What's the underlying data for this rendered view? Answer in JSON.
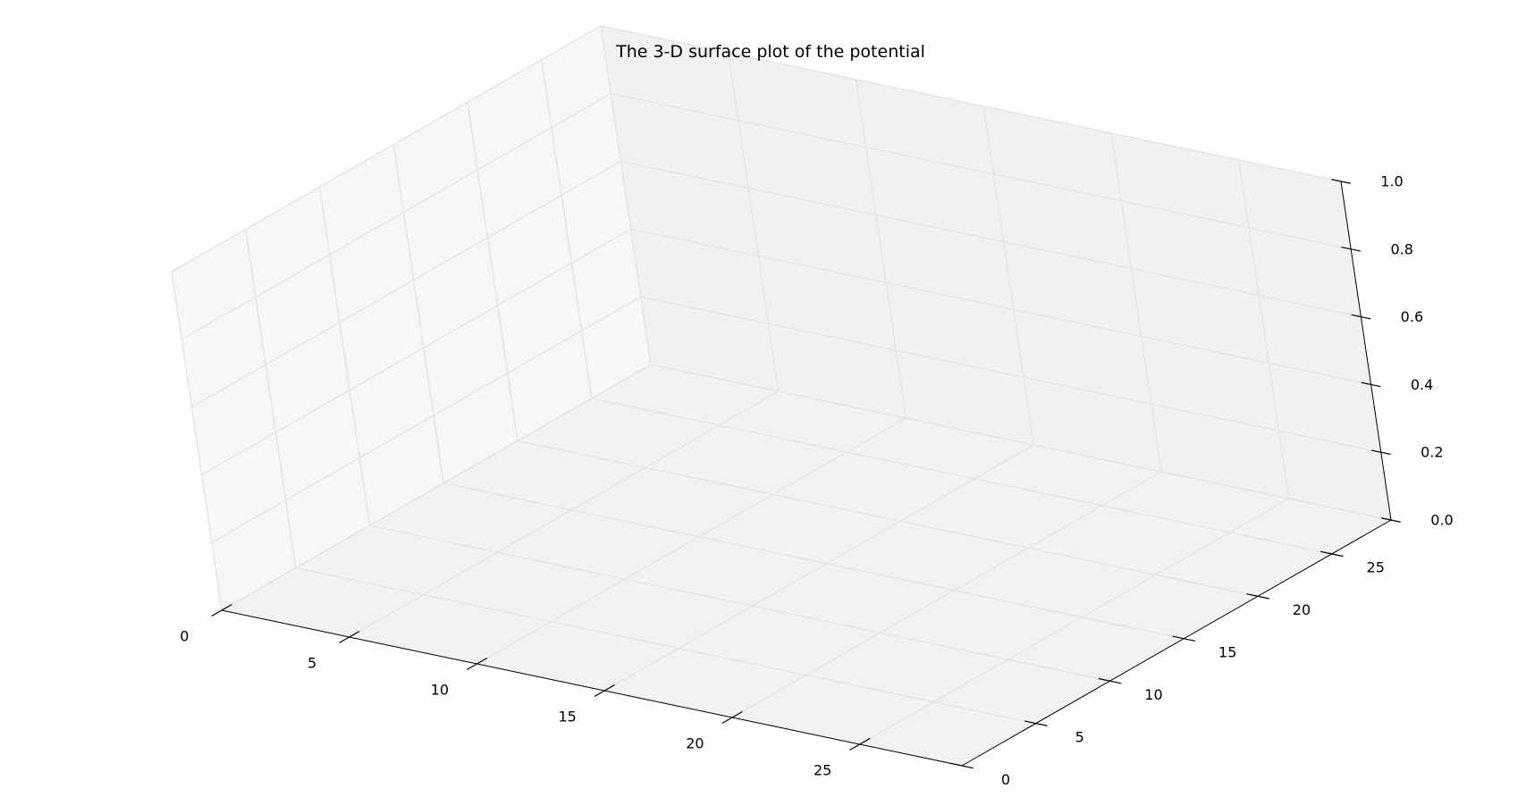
{
  "chart_data": {
    "type": "surface",
    "projection": "3d",
    "title": "The 3-D surface plot of the potential",
    "xlabel": "",
    "ylabel": "",
    "zlabel": "",
    "xlim": [
      0,
      29
    ],
    "ylim": [
      0,
      29
    ],
    "zlim": [
      0,
      1
    ],
    "x_ticks": [
      0,
      5,
      10,
      15,
      20,
      25
    ],
    "y_ticks": [
      0,
      5,
      10,
      15,
      20,
      25
    ],
    "z_ticks": [
      0.0,
      0.2,
      0.4,
      0.6,
      0.8,
      1.0
    ],
    "x_tick_labels": [
      "0",
      "5",
      "10",
      "15",
      "20",
      "25"
    ],
    "y_tick_labels": [
      "0",
      "5",
      "10",
      "15",
      "20",
      "25"
    ],
    "z_tick_labels": [
      "0.0",
      "0.2",
      "0.4",
      "0.6",
      "0.8",
      "1.0"
    ],
    "surface": [],
    "grid": true,
    "colors": {
      "pane_floor": "#f2f2f2",
      "pane_left": "#f7f7f7",
      "pane_back": "#f1f1f1",
      "grid": "#e3e3e3",
      "axis": "#000000"
    }
  }
}
